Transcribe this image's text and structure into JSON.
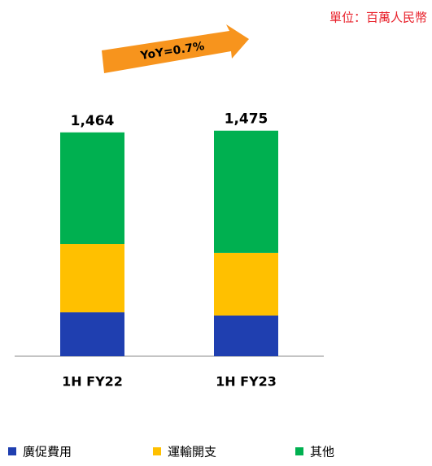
{
  "chart_data": {
    "type": "stacked_bar",
    "unit_note": "單位：百萬人民幣",
    "annotation": "YoY=0.7%",
    "categories": [
      "1H FY22",
      "1H FY23"
    ],
    "series": [
      {
        "name": "廣促費用",
        "color": "#1f3fb0",
        "values": [
          287,
          266
        ]
      },
      {
        "name": "運輸開支",
        "color": "#ffc000",
        "values": [
          447,
          410
        ]
      },
      {
        "name": "其他",
        "color": "#00b050",
        "values": [
          730,
          799
        ]
      }
    ],
    "totals": [
      1464,
      1475
    ],
    "total_labels": [
      "1,464",
      "1,475"
    ],
    "legend": "bottom"
  }
}
